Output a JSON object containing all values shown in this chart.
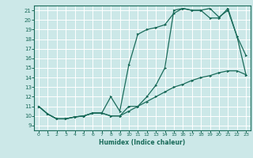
{
  "xlabel": "Humidex (Indice chaleur)",
  "xlim": [
    -0.5,
    23.5
  ],
  "ylim": [
    8.5,
    21.5
  ],
  "xticks": [
    0,
    1,
    2,
    3,
    4,
    5,
    6,
    7,
    8,
    9,
    10,
    11,
    12,
    13,
    14,
    15,
    16,
    17,
    18,
    19,
    20,
    21,
    22,
    23
  ],
  "yticks": [
    9,
    10,
    11,
    12,
    13,
    14,
    15,
    16,
    17,
    18,
    19,
    20,
    21
  ],
  "bg_color": "#cce8e8",
  "line_color": "#1a6b5a",
  "grid_color": "#ffffff",
  "line1_x": [
    0,
    1,
    2,
    3,
    4,
    5,
    6,
    7,
    8,
    9,
    10,
    11,
    12,
    13,
    14,
    15,
    16,
    17,
    18,
    19,
    20,
    21,
    22,
    23
  ],
  "line1_y": [
    11,
    10.2,
    9.7,
    9.7,
    9.9,
    10,
    10.3,
    10.3,
    10,
    10,
    11,
    11,
    12,
    13.2,
    15,
    21,
    21.2,
    21,
    21,
    21.2,
    20.3,
    21,
    18.3,
    16.3
  ],
  "line2_x": [
    0,
    1,
    2,
    3,
    4,
    5,
    6,
    7,
    8,
    9,
    10,
    11,
    12,
    13,
    14,
    15,
    16,
    17,
    18,
    19,
    20,
    21,
    22,
    23
  ],
  "line2_y": [
    11,
    10.2,
    9.7,
    9.7,
    9.9,
    10,
    10.3,
    10.3,
    12,
    10.5,
    15.3,
    18.5,
    19,
    19.2,
    19.5,
    20.7,
    21.2,
    21,
    21,
    20.2,
    20.2,
    21.2,
    18.3,
    14.3
  ],
  "line3_x": [
    0,
    1,
    2,
    3,
    4,
    5,
    6,
    7,
    8,
    9,
    10,
    11,
    12,
    13,
    14,
    15,
    16,
    17,
    18,
    19,
    20,
    21,
    22,
    23
  ],
  "line3_y": [
    11,
    10.2,
    9.7,
    9.7,
    9.9,
    10,
    10.3,
    10.3,
    10,
    10,
    10.5,
    11,
    11.5,
    12,
    12.5,
    13,
    13.3,
    13.7,
    14,
    14.2,
    14.5,
    14.7,
    14.7,
    14.3
  ]
}
